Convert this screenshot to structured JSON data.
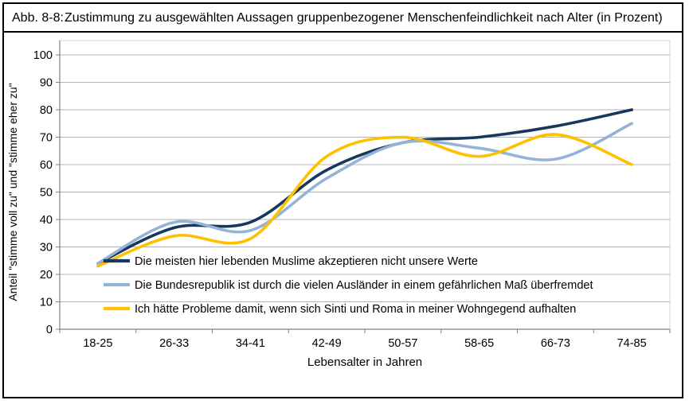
{
  "figure": {
    "title_label": "Abb. 8-8:",
    "title_text": "Zustimmung zu ausgewählten Aussagen gruppenbezogener Menschenfeindlichkeit nach Alter (in Prozent)"
  },
  "chart_data": {
    "type": "line",
    "smooth": true,
    "categories": [
      "18-25",
      "26-33",
      "34-41",
      "42-49",
      "50-57",
      "58-65",
      "66-73",
      "74-85"
    ],
    "series": [
      {
        "name": "Die meisten hier lebenden Muslime akzeptieren nicht unsere Werte",
        "color": "#17375D",
        "values": [
          24,
          37,
          39,
          58,
          68,
          70,
          74,
          80
        ]
      },
      {
        "name": "Die Bundesrepublik ist durch die vielen Ausländer in einem gefährlichen Maß überfremdet",
        "color": "#95B3D7",
        "values": [
          24,
          39,
          36,
          55,
          68,
          66,
          62,
          75
        ]
      },
      {
        "name": "Ich hätte Probleme damit, wenn sich Sinti und Roma in meiner Wohngegend aufhalten",
        "color": "#FFC000",
        "values": [
          23,
          34,
          33,
          63,
          70,
          63,
          71,
          60
        ]
      }
    ],
    "xlabel": "Lebensalter in Jahren",
    "ylabel": "Anteil \"stimme voll zu\" und \"stimme eher zu\"",
    "ylim": [
      0,
      100
    ],
    "ytick_step": 10,
    "grid": true,
    "legend_position": "inside-bottom-left",
    "colors": {
      "gridline": "#B3B3B3",
      "axis": "#808080",
      "plot_border": "#D4D4D4",
      "text": "#000000"
    }
  }
}
